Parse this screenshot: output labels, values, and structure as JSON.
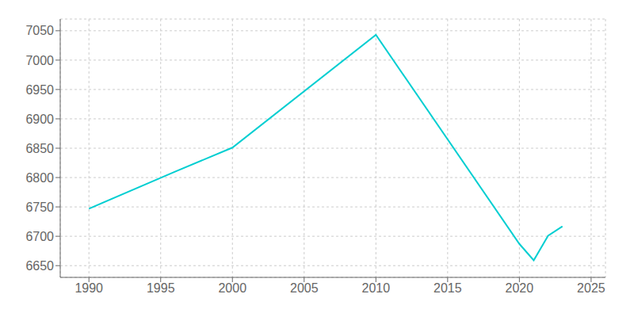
{
  "chart_data": {
    "type": "line",
    "x": [
      1990,
      1996,
      2000,
      2010,
      2020,
      2021,
      2022,
      2023
    ],
    "values": [
      6747,
      6810,
      6851,
      7043,
      6687,
      6659,
      6701,
      6717
    ],
    "color": "#00CED1",
    "xlim": [
      1988,
      2026
    ],
    "ylim": [
      6630,
      7070
    ],
    "xticks": [
      1990,
      1995,
      2000,
      2005,
      2010,
      2015,
      2020,
      2025
    ],
    "yticks": [
      6650,
      6700,
      6750,
      6800,
      6850,
      6900,
      6950,
      7000,
      7050
    ],
    "grid": true
  }
}
